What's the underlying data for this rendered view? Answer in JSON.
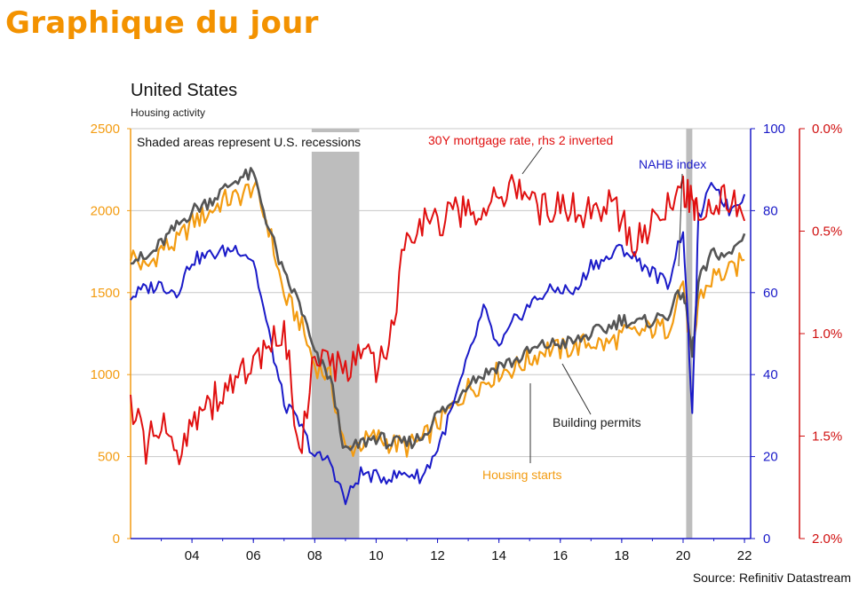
{
  "page_header": "Graphique du jour",
  "chart_data": {
    "type": "line",
    "title": "United States",
    "subtitle": "Housing activity",
    "note": "Shaded areas represent U.S. recessions",
    "source": "Source: Refinitiv Datastream",
    "x_ticks": [
      "04",
      "06",
      "08",
      "10",
      "12",
      "14",
      "16",
      "18",
      "20",
      "22"
    ],
    "x_tick_values": [
      2004,
      2006,
      2008,
      2010,
      2012,
      2014,
      2016,
      2018,
      2020,
      2022
    ],
    "xlim": [
      2002.0,
      2022.2
    ],
    "grid": true,
    "recessions": [
      [
        2007.9,
        2009.45
      ],
      [
        2020.1,
        2020.3
      ]
    ],
    "axes": {
      "left": {
        "ylim": [
          0,
          2500
        ],
        "ticks": [
          "0",
          "500",
          "1000",
          "1500",
          "2000",
          "2500"
        ],
        "tick_values": [
          0,
          500,
          1000,
          1500,
          2000,
          2500
        ],
        "color": "#F39C12"
      },
      "right1": {
        "ylim": [
          0,
          100
        ],
        "ticks": [
          "0",
          "20",
          "40",
          "60",
          "80",
          "100"
        ],
        "tick_values": [
          0,
          20,
          40,
          60,
          80,
          100
        ],
        "color": "#1a1ac8"
      },
      "right2": {
        "ylim": [
          0.0,
          2.0
        ],
        "inverted": true,
        "ticks": [
          "0.0%",
          "0.5%",
          "1.0%",
          "1.5%",
          "2.0%"
        ],
        "tick_values": [
          0.0,
          0.5,
          1.0,
          1.5,
          2.0
        ],
        "color": "#d01010"
      }
    },
    "series": [
      {
        "name": "Housing starts",
        "axis": "left",
        "color": "#F39C12",
        "x": [
          2002.0,
          2002.5,
          2003.0,
          2003.5,
          2004.0,
          2004.5,
          2005.0,
          2005.5,
          2006.0,
          2006.5,
          2007.0,
          2007.5,
          2008.0,
          2008.5,
          2009.0,
          2009.5,
          2010.0,
          2010.5,
          2011.0,
          2011.5,
          2012.0,
          2012.5,
          2013.0,
          2013.5,
          2014.0,
          2014.5,
          2015.0,
          2015.5,
          2016.0,
          2016.5,
          2017.0,
          2017.5,
          2018.0,
          2018.5,
          2019.0,
          2019.5,
          2020.0,
          2020.3,
          2020.5,
          2021.0,
          2021.5,
          2022.0
        ],
        "y": [
          1740,
          1640,
          1770,
          1800,
          1930,
          1980,
          2060,
          2080,
          2150,
          1900,
          1480,
          1330,
          1060,
          980,
          530,
          580,
          620,
          580,
          560,
          600,
          700,
          800,
          920,
          950,
          1020,
          1040,
          1090,
          1160,
          1150,
          1170,
          1200,
          1180,
          1240,
          1250,
          1280,
          1280,
          1580,
          1050,
          1460,
          1600,
          1620,
          1700
        ]
      },
      {
        "name": "Building permits",
        "axis": "left",
        "color": "#555555",
        "x": [
          2002.0,
          2002.5,
          2003.0,
          2003.5,
          2004.0,
          2004.5,
          2005.0,
          2005.5,
          2006.0,
          2006.5,
          2007.0,
          2007.5,
          2008.0,
          2008.5,
          2009.0,
          2009.5,
          2010.0,
          2010.5,
          2011.0,
          2011.5,
          2012.0,
          2012.5,
          2013.0,
          2013.5,
          2014.0,
          2014.5,
          2015.0,
          2015.5,
          2016.0,
          2016.5,
          2017.0,
          2017.5,
          2018.0,
          2018.5,
          2019.0,
          2019.5,
          2020.0,
          2020.3,
          2020.5,
          2021.0,
          2021.5,
          2022.0
        ],
        "y": [
          1720,
          1700,
          1800,
          1900,
          2000,
          2050,
          2120,
          2200,
          2220,
          1900,
          1600,
          1440,
          1120,
          980,
          520,
          580,
          620,
          580,
          580,
          620,
          760,
          820,
          960,
          1000,
          1060,
          1080,
          1140,
          1180,
          1190,
          1200,
          1250,
          1280,
          1340,
          1310,
          1330,
          1370,
          1520,
          1120,
          1560,
          1750,
          1720,
          1860
        ]
      },
      {
        "name": "NAHB index",
        "axis": "right1",
        "color": "#1a1ac8",
        "x": [
          2002.0,
          2002.5,
          2003.0,
          2003.5,
          2004.0,
          2004.5,
          2005.0,
          2005.5,
          2006.0,
          2006.5,
          2007.0,
          2007.5,
          2008.0,
          2008.5,
          2009.0,
          2009.5,
          2010.0,
          2010.5,
          2011.0,
          2011.5,
          2012.0,
          2012.5,
          2013.0,
          2013.5,
          2014.0,
          2014.5,
          2015.0,
          2015.5,
          2016.0,
          2016.5,
          2017.0,
          2017.5,
          2018.0,
          2018.5,
          2019.0,
          2019.5,
          2020.0,
          2020.3,
          2020.5,
          2021.0,
          2021.5,
          2022.0
        ],
        "y": [
          59,
          61,
          62,
          60,
          68,
          69,
          70,
          71,
          68,
          50,
          33,
          28,
          20,
          19,
          9,
          16,
          15,
          15,
          16,
          15,
          22,
          32,
          44,
          56,
          46,
          53,
          57,
          60,
          61,
          60,
          67,
          68,
          71,
          68,
          65,
          62,
          76,
          30,
          78,
          87,
          80,
          84
        ]
      },
      {
        "name": "30Y mortgage rate, rhs 2 inverted",
        "axis": "right2",
        "color": "#e01010",
        "x": [
          2002.0,
          2002.5,
          2003.0,
          2003.5,
          2004.0,
          2004.5,
          2005.0,
          2005.5,
          2006.0,
          2006.5,
          2007.0,
          2007.5,
          2008.0,
          2008.5,
          2009.0,
          2009.5,
          2010.0,
          2010.5,
          2011.0,
          2011.5,
          2012.0,
          2012.5,
          2013.0,
          2013.5,
          2014.0,
          2014.5,
          2015.0,
          2015.5,
          2016.0,
          2016.5,
          2017.0,
          2017.5,
          2018.0,
          2018.5,
          2019.0,
          2019.5,
          2020.0,
          2020.3,
          2020.5,
          2021.0,
          2021.5,
          2022.0
        ],
        "y": [
          1.35,
          1.55,
          1.45,
          1.6,
          1.4,
          1.35,
          1.3,
          1.2,
          1.15,
          1.1,
          0.95,
          1.6,
          1.1,
          1.15,
          1.2,
          1.05,
          1.2,
          1.0,
          0.5,
          0.45,
          0.45,
          0.42,
          0.4,
          0.4,
          0.35,
          0.25,
          0.35,
          0.4,
          0.35,
          0.4,
          0.4,
          0.35,
          0.45,
          0.55,
          0.45,
          0.4,
          0.3,
          0.35,
          0.4,
          0.35,
          0.35,
          0.45
        ]
      }
    ],
    "annotations": [
      {
        "text": "30Y mortgage rate, rhs 2 inverted",
        "color": "#e01010"
      },
      {
        "text": "NAHB index",
        "color": "#1a1ac8"
      },
      {
        "text": "Building permits",
        "color": "#222222"
      },
      {
        "text": "Housing starts",
        "color": "#F39C12"
      }
    ]
  }
}
